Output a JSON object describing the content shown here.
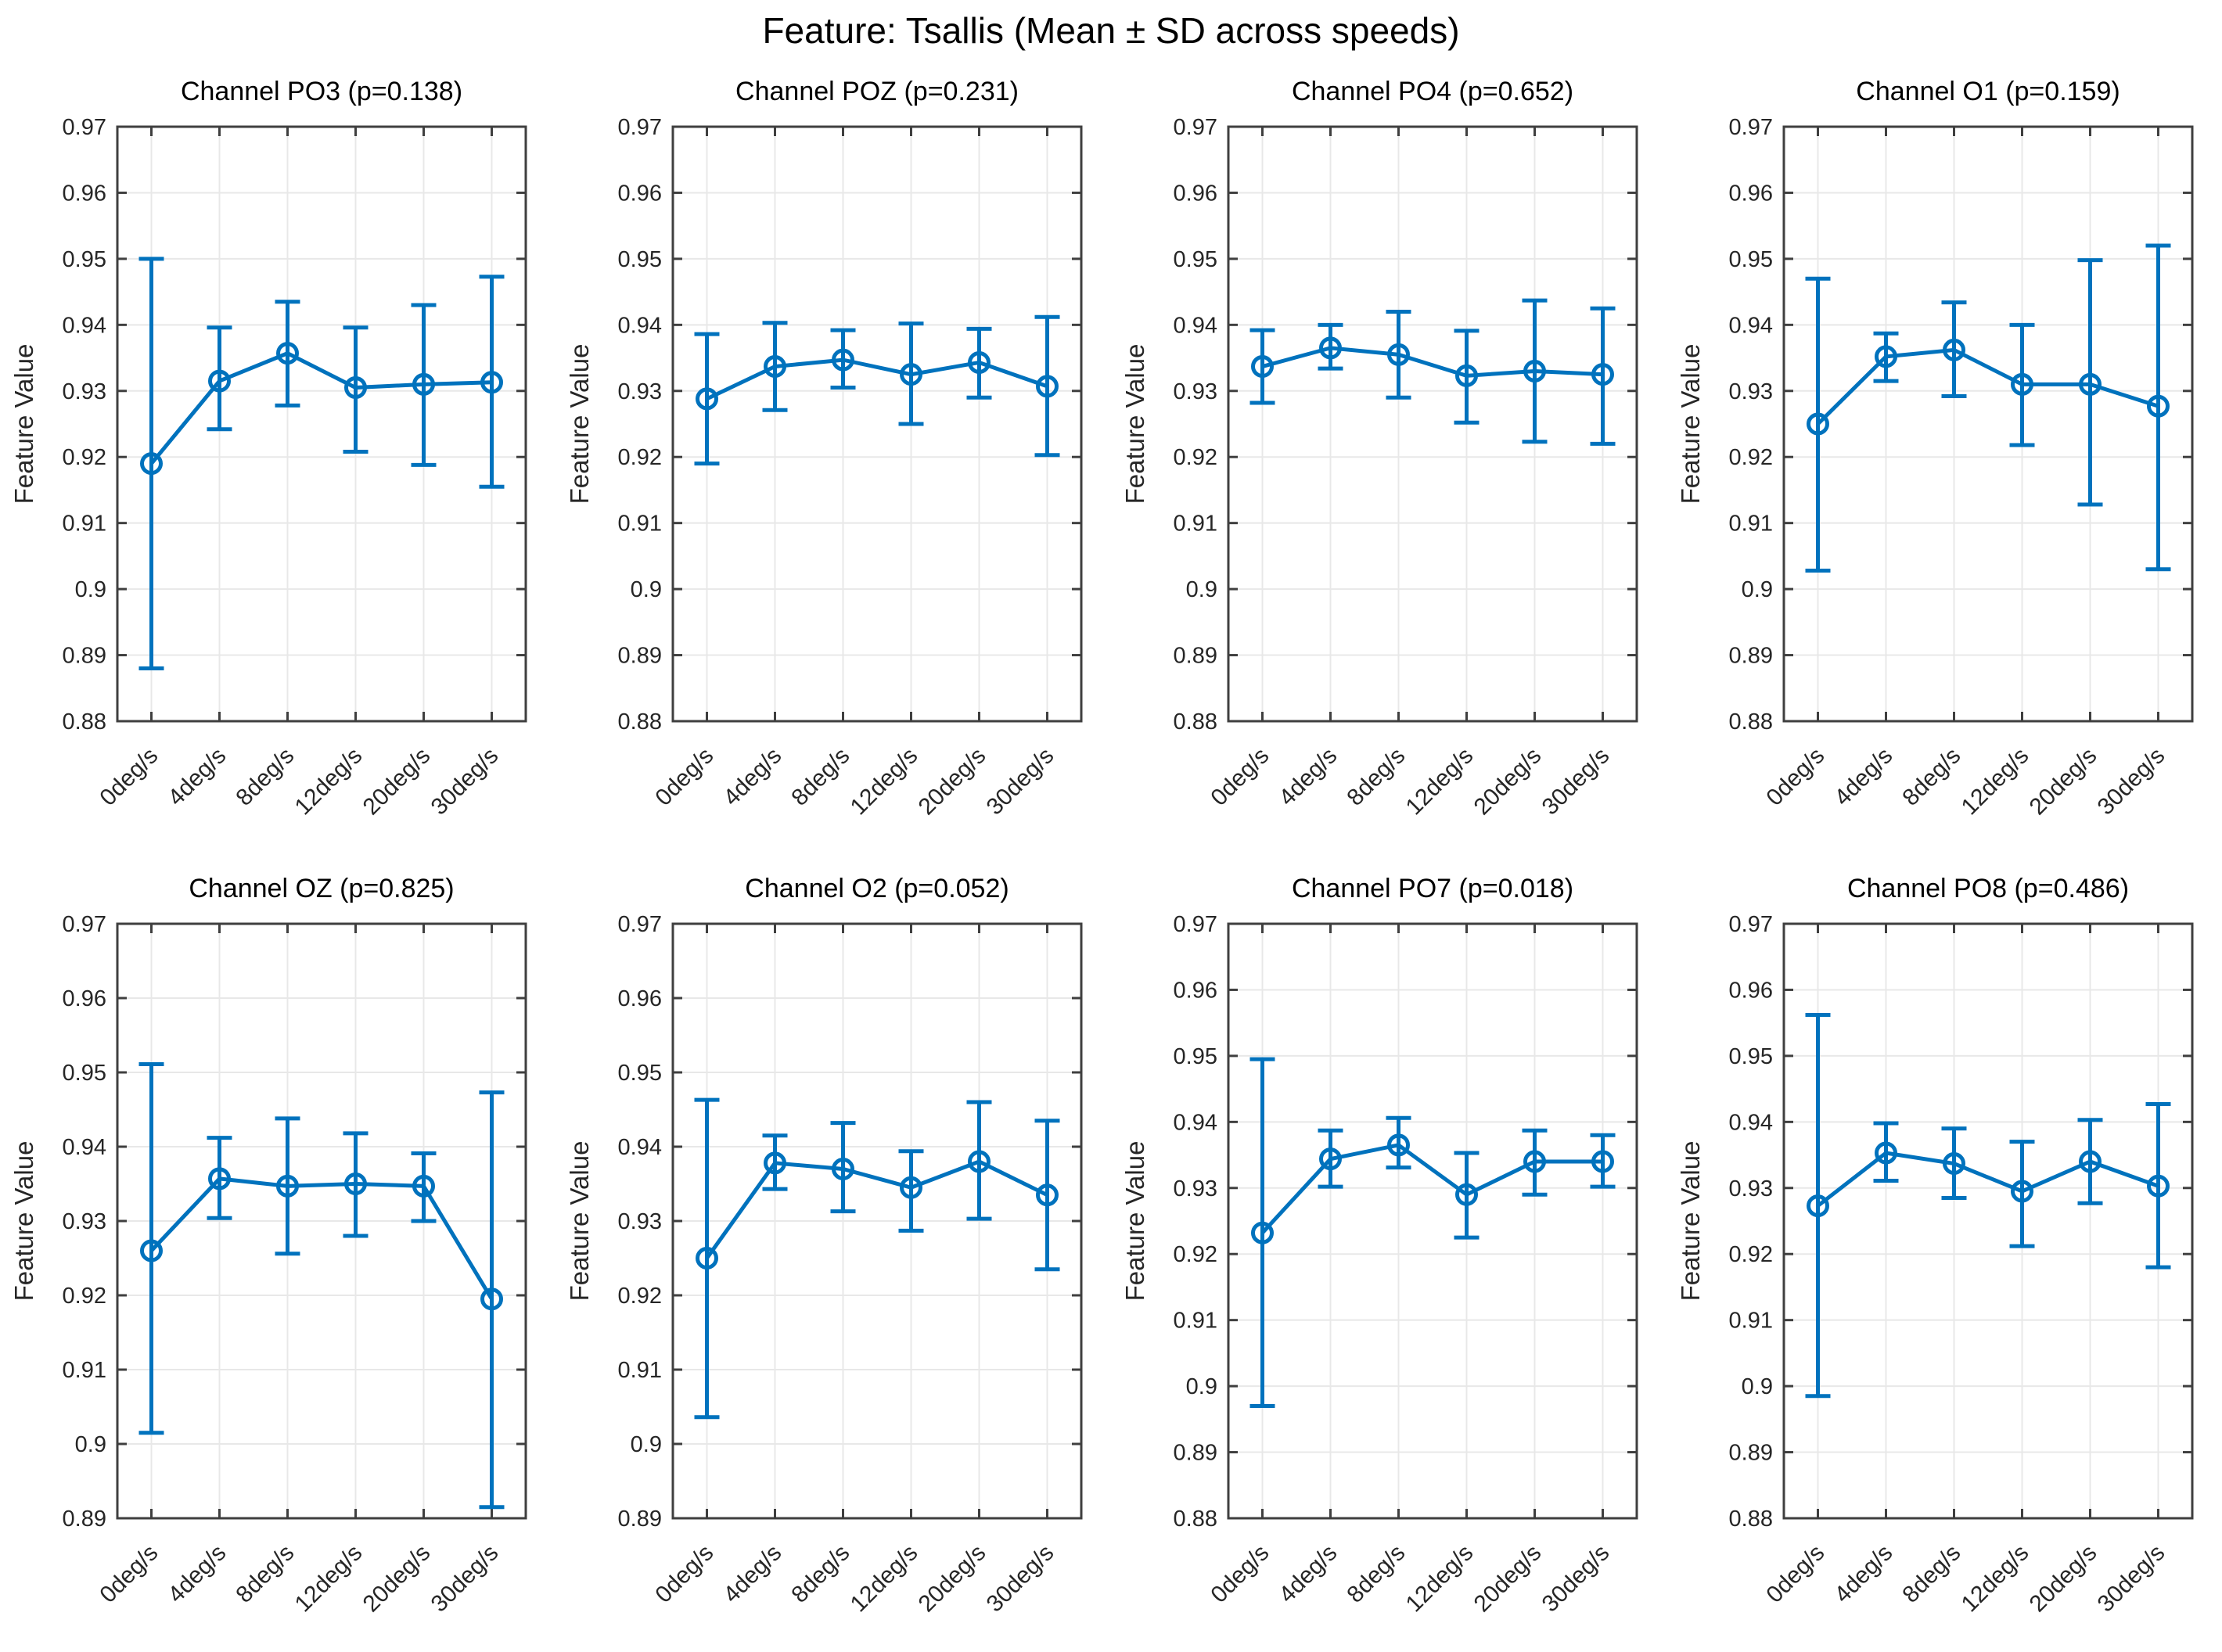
{
  "figure": {
    "title": "Feature: Tsallis (Mean ± SD across speeds)",
    "ylabel": "Feature Value",
    "accent_color": "#0072BD",
    "grid_color": "#E8E8E8",
    "axis_color": "#3F3F3F",
    "tick_label_color": "#262626",
    "title_color": "#000000"
  },
  "chart_data": {
    "type": "line",
    "error_bars": "mean ± SD",
    "categories": [
      "0deg/s",
      "4deg/s",
      "8deg/s",
      "12deg/s",
      "20deg/s",
      "30deg/s"
    ],
    "xlabel": "",
    "ylabel": "Feature Value",
    "grid": true,
    "legend": false,
    "subplots": [
      {
        "title": "Channel PO3 (p=0.138)",
        "ylim": [
          0.88,
          0.97
        ],
        "yticks": [
          "0.88",
          "0.89",
          "0.9",
          "0.91",
          "0.92",
          "0.93",
          "0.94",
          "0.95",
          "0.96",
          "0.97"
        ],
        "means": [
          0.919,
          0.9315,
          0.9357,
          0.9305,
          0.931,
          0.9313
        ],
        "lower": [
          0.888,
          0.9242,
          0.9278,
          0.9208,
          0.9188,
          0.9155
        ],
        "upper": [
          0.95,
          0.9396,
          0.9435,
          0.9396,
          0.943,
          0.9473
        ]
      },
      {
        "title": "Channel POZ (p=0.231)",
        "ylim": [
          0.88,
          0.97
        ],
        "yticks": [
          "0.88",
          "0.89",
          "0.9",
          "0.91",
          "0.92",
          "0.93",
          "0.94",
          "0.95",
          "0.96",
          "0.97"
        ],
        "means": [
          0.9288,
          0.9337,
          0.9347,
          0.9325,
          0.9343,
          0.9307
        ],
        "lower": [
          0.919,
          0.9271,
          0.9305,
          0.925,
          0.929,
          0.9203
        ],
        "upper": [
          0.9386,
          0.9403,
          0.9392,
          0.9402,
          0.9394,
          0.9412
        ]
      },
      {
        "title": "Channel PO4 (p=0.652)",
        "ylim": [
          0.88,
          0.97
        ],
        "yticks": [
          "0.88",
          "0.89",
          "0.9",
          "0.91",
          "0.92",
          "0.93",
          "0.94",
          "0.95",
          "0.96",
          "0.97"
        ],
        "means": [
          0.9337,
          0.9365,
          0.9355,
          0.9323,
          0.933,
          0.9325
        ],
        "lower": [
          0.9282,
          0.9334,
          0.929,
          0.9252,
          0.9223,
          0.922
        ],
        "upper": [
          0.9392,
          0.94,
          0.942,
          0.9391,
          0.9437,
          0.9425
        ]
      },
      {
        "title": "Channel O1 (p=0.159)",
        "ylim": [
          0.88,
          0.97
        ],
        "yticks": [
          "0.88",
          "0.89",
          "0.9",
          "0.91",
          "0.92",
          "0.93",
          "0.94",
          "0.95",
          "0.96",
          "0.97"
        ],
        "means": [
          0.925,
          0.9352,
          0.9362,
          0.931,
          0.931,
          0.9277
        ],
        "lower": [
          0.9028,
          0.9315,
          0.9292,
          0.9218,
          0.9128,
          0.903
        ],
        "upper": [
          0.947,
          0.9387,
          0.9434,
          0.94,
          0.9498,
          0.952
        ]
      },
      {
        "title": "Channel OZ (p=0.825)",
        "ylim": [
          0.89,
          0.97
        ],
        "yticks": [
          "0.89",
          "0.9",
          "0.91",
          "0.92",
          "0.93",
          "0.94",
          "0.95",
          "0.96",
          "0.97"
        ],
        "means": [
          0.926,
          0.9357,
          0.9347,
          0.935,
          0.9347,
          0.9195
        ],
        "lower": [
          0.9015,
          0.9304,
          0.9256,
          0.928,
          0.93,
          0.8915
        ],
        "upper": [
          0.9511,
          0.9412,
          0.9438,
          0.9418,
          0.9391,
          0.9473
        ]
      },
      {
        "title": "Channel O2 (p=0.052)",
        "ylim": [
          0.89,
          0.97
        ],
        "yticks": [
          "0.89",
          "0.9",
          "0.91",
          "0.92",
          "0.93",
          "0.94",
          "0.95",
          "0.96",
          "0.97"
        ],
        "means": [
          0.925,
          0.9378,
          0.937,
          0.9345,
          0.938,
          0.9335
        ],
        "lower": [
          0.9036,
          0.9343,
          0.9313,
          0.9287,
          0.9303,
          0.9235
        ],
        "upper": [
          0.9463,
          0.9415,
          0.9432,
          0.9394,
          0.946,
          0.9435
        ]
      },
      {
        "title": "Channel PO7 (p=0.018)",
        "ylim": [
          0.88,
          0.97
        ],
        "yticks": [
          "0.88",
          "0.89",
          "0.9",
          "0.91",
          "0.92",
          "0.93",
          "0.94",
          "0.95",
          "0.96",
          "0.97"
        ],
        "means": [
          0.9232,
          0.9344,
          0.9365,
          0.929,
          0.934,
          0.934
        ],
        "lower": [
          0.897,
          0.9302,
          0.9331,
          0.9225,
          0.929,
          0.9302
        ],
        "upper": [
          0.9495,
          0.9387,
          0.9406,
          0.9353,
          0.9387,
          0.938
        ]
      },
      {
        "title": "Channel PO8 (p=0.486)",
        "ylim": [
          0.88,
          0.97
        ],
        "yticks": [
          "0.88",
          "0.89",
          "0.9",
          "0.91",
          "0.92",
          "0.93",
          "0.94",
          "0.95",
          "0.96",
          "0.97"
        ],
        "means": [
          0.9273,
          0.9353,
          0.9337,
          0.9295,
          0.934,
          0.9303
        ],
        "lower": [
          0.8985,
          0.9311,
          0.9285,
          0.9212,
          0.9277,
          0.918
        ],
        "upper": [
          0.9562,
          0.9398,
          0.939,
          0.937,
          0.9403,
          0.9427
        ]
      }
    ]
  }
}
